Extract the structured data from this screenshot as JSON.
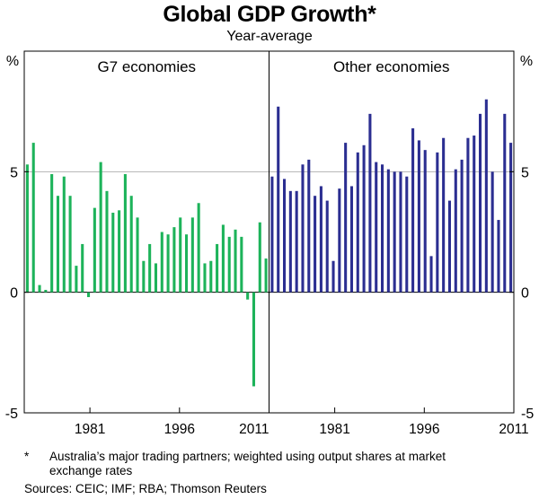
{
  "chart_data": {
    "type": "bar",
    "title": "Global GDP Growth*",
    "subtitle": "Year-average",
    "unit_left": "%",
    "unit_right": "%",
    "ylim": [
      -5,
      10
    ],
    "yticks": [
      -5,
      0,
      5
    ],
    "colors": {
      "g7": "#1db35a",
      "other": "#2b2e91",
      "gridline": "#b3b3b3"
    },
    "panels": [
      {
        "name": "G7 economies",
        "x_start": 1970,
        "x_end": 2011,
        "xticks": [
          1981,
          1996,
          2011
        ],
        "values": [
          5.3,
          6.2,
          0.3,
          0.1,
          4.9,
          4.0,
          4.8,
          4.0,
          1.1,
          2.0,
          -0.2,
          3.5,
          5.4,
          4.2,
          3.3,
          3.4,
          4.9,
          4.0,
          3.1,
          1.3,
          2.0,
          1.2,
          2.5,
          2.4,
          2.7,
          3.1,
          2.4,
          3.1,
          3.7,
          1.2,
          1.3,
          2.0,
          2.8,
          2.3,
          2.6,
          2.3,
          -0.3,
          -3.9,
          2.9,
          1.4
        ]
      },
      {
        "name": "Other economies",
        "x_start": 1970,
        "x_end": 2011,
        "xticks": [
          1981,
          1996,
          2011
        ],
        "values": [
          4.8,
          7.7,
          4.7,
          4.2,
          4.2,
          5.3,
          5.5,
          4.0,
          4.4,
          3.8,
          1.3,
          4.3,
          6.2,
          4.4,
          5.8,
          6.1,
          7.4,
          5.4,
          5.3,
          5.1,
          5.0,
          5.0,
          4.8,
          6.8,
          6.3,
          5.9,
          1.5,
          5.8,
          6.4,
          3.8,
          5.1,
          5.5,
          6.4,
          6.5,
          7.4,
          8.0,
          5.0,
          3.0,
          7.4,
          6.2
        ]
      }
    ]
  },
  "footnote": {
    "marker": "*",
    "text": "Australia’s major trading partners; weighted using output shares at market exchange rates",
    "sources": "Sources: CEIC; IMF; RBA; Thomson Reuters"
  }
}
